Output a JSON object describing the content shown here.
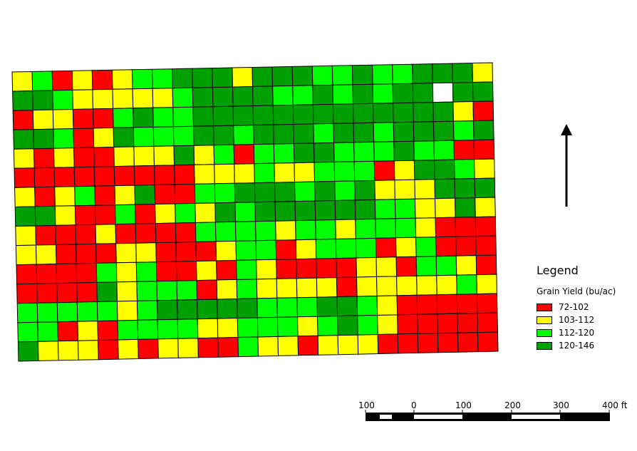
{
  "legend": {
    "title": "Legend",
    "subtitle": "Grain Yield (bu/ac)",
    "classes": [
      {
        "label": "72-102",
        "color": "#ff0000"
      },
      {
        "label": "103-112",
        "color": "#ffff00"
      },
      {
        "label": "112-120",
        "color": "#00ff00"
      },
      {
        "label": "120-146",
        "color": "#00a000"
      }
    ]
  },
  "scale_bar": {
    "labels": [
      "100",
      "0",
      "100",
      "200",
      "300",
      "400 ft"
    ]
  },
  "north_arrow": {
    "icon": "north-arrow-icon"
  },
  "yield_grid": {
    "classes_key": "R=72-102, Y=103-112, L=112-120, G=120-146, W=no data",
    "rows": [
      "YLRYRYLLGGGYGGGLLGLLGGGY",
      "GGLYYYYYLGGGGLLGLGLGGWGG",
      "RYYRRLGLLGGGGGGGGGGGGGYR",
      "GGLRYGLLLGGLGGGLGGLGGGLG",
      "YRYRRYYYGYLRLLGGLLLGLLRR",
      "RRRRRRRRRYYYLYYLLLRYGGLY",
      "YRYLRYGRRLLGGGLGLGYYYGGG",
      "GGYRRLRYLYGLGGGGGGLLYYGY",
      "YRRRYRRRRLLLLYLLYLLLYRRR",
      "YYRRRYYRRRYLLRYLLLRYLRRR",
      "RRRRLYLRRYRLYRRRRYYRLLYR",
      "RRRRGYLLLRYLYYYYRYYYYYLY",
      "LLLLLYLGGGGGLLLGGLYRRRRR",
      "LLRYRLLLLYYLLLYLGLYRRRRR",
      "GYYYRYRYYRRLYYRYYYRRRRRR"
    ]
  }
}
